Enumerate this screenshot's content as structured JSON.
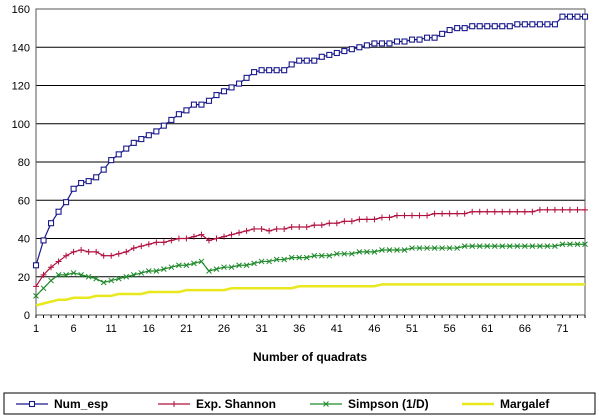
{
  "chart_data": {
    "type": "line",
    "title": "",
    "xlabel": "Number of quadrats",
    "ylabel": "",
    "ylim": [
      0,
      160
    ],
    "y_ticks": [
      0,
      20,
      40,
      60,
      80,
      100,
      120,
      140,
      160
    ],
    "x_range": [
      1,
      74
    ],
    "x_tick_labels": [
      "1",
      "6",
      "11",
      "16",
      "21",
      "26",
      "31",
      "36",
      "41",
      "46",
      "51",
      "56",
      "61",
      "66",
      "71"
    ],
    "grid": "horizontal",
    "legend_position": "bottom",
    "x": [
      1,
      2,
      3,
      4,
      5,
      6,
      7,
      8,
      9,
      10,
      11,
      12,
      13,
      14,
      15,
      16,
      17,
      18,
      19,
      20,
      21,
      22,
      23,
      24,
      25,
      26,
      27,
      28,
      29,
      30,
      31,
      32,
      33,
      34,
      35,
      36,
      37,
      38,
      39,
      40,
      41,
      42,
      43,
      44,
      45,
      46,
      47,
      48,
      49,
      50,
      51,
      52,
      53,
      54,
      55,
      56,
      57,
      58,
      59,
      60,
      61,
      62,
      63,
      64,
      65,
      66,
      67,
      68,
      69,
      70,
      71,
      72,
      73,
      74
    ],
    "series": [
      {
        "name": "Num_esp",
        "color": "#1a1a8c",
        "marker": "square",
        "values": [
          26,
          39,
          48,
          54,
          59,
          66,
          69,
          70,
          72,
          76,
          81,
          84,
          87,
          90,
          92,
          94,
          96,
          99,
          102,
          105,
          107,
          110,
          110,
          112,
          115,
          117,
          119,
          121,
          124,
          127,
          128,
          128,
          128,
          128,
          131,
          133,
          133,
          133,
          135,
          136,
          137,
          138,
          139,
          140,
          141,
          142,
          142,
          142,
          143,
          143,
          144,
          144,
          145,
          145,
          147,
          149,
          150,
          150,
          151,
          151,
          151,
          151,
          151,
          151,
          152,
          152,
          152,
          152,
          152,
          152,
          156,
          156,
          156,
          156
        ]
      },
      {
        "name": "Exp. Shannon",
        "color": "#b0103f",
        "marker": "plus",
        "values": [
          15,
          21,
          25,
          28,
          31,
          33,
          34,
          33,
          33,
          31,
          31,
          32,
          33,
          35,
          36,
          37,
          38,
          38,
          39,
          40,
          40,
          41,
          42,
          39,
          40,
          41,
          42,
          43,
          44,
          45,
          45,
          44,
          45,
          45,
          46,
          46,
          46,
          47,
          47,
          48,
          48,
          49,
          49,
          50,
          50,
          50,
          51,
          51,
          52,
          52,
          52,
          52,
          52,
          53,
          53,
          53,
          53,
          53,
          54,
          54,
          54,
          54,
          54,
          54,
          54,
          54,
          54,
          55,
          55,
          55,
          55,
          55,
          55,
          55
        ]
      },
      {
        "name": "Simpson (1/D)",
        "color": "#1e8a2a",
        "marker": "x",
        "values": [
          10,
          14,
          18,
          21,
          21,
          22,
          21,
          20,
          19,
          17,
          18,
          19,
          20,
          21,
          22,
          23,
          23,
          24,
          25,
          26,
          26,
          27,
          28,
          23,
          24,
          25,
          25,
          26,
          26,
          27,
          28,
          28,
          29,
          29,
          30,
          30,
          30,
          31,
          31,
          31,
          32,
          32,
          32,
          33,
          33,
          33,
          34,
          34,
          34,
          34,
          35,
          35,
          35,
          35,
          35,
          35,
          35,
          36,
          36,
          36,
          36,
          36,
          36,
          36,
          36,
          36,
          36,
          36,
          36,
          36,
          37,
          37,
          37,
          37
        ]
      },
      {
        "name": "Margalef",
        "color": "#e8e81c",
        "marker": "none",
        "values": [
          5,
          6,
          7,
          8,
          8,
          9,
          9,
          9,
          10,
          10,
          10,
          11,
          11,
          11,
          11,
          12,
          12,
          12,
          12,
          12,
          13,
          13,
          13,
          13,
          13,
          13,
          14,
          14,
          14,
          14,
          14,
          14,
          14,
          14,
          14,
          15,
          15,
          15,
          15,
          15,
          15,
          15,
          15,
          15,
          15,
          15,
          16,
          16,
          16,
          16,
          16,
          16,
          16,
          16,
          16,
          16,
          16,
          16,
          16,
          16,
          16,
          16,
          16,
          16,
          16,
          16,
          16,
          16,
          16,
          16,
          16,
          16,
          16,
          16
        ]
      }
    ]
  }
}
